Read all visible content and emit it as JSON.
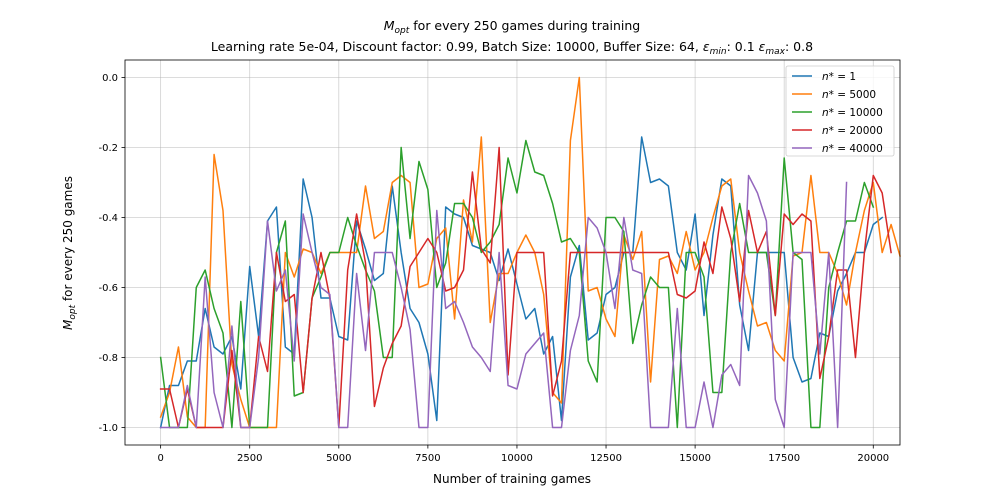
{
  "chart_data": {
    "type": "line",
    "title": "M_opt for every 250 games during training",
    "title_parts": {
      "symbol": "M",
      "sub": "opt",
      "rest": " for every 250 games during training"
    },
    "subtitle": "Learning rate 5e-04, Discount factor: 0.99, Batch Size: 10000, Buffer Size: 64, ε_min: 0.1 ε_max: 0.8",
    "subtitle_parts": {
      "prefix": "Learning rate 5e-04, Discount factor: 0.99, Batch Size: 10000, Buffer Size: 64, ",
      "eps_min_symbol": "ε",
      "eps_min_sub": "min",
      "eps_min_value": ": 0.1 ",
      "eps_max_symbol": "ε",
      "eps_max_sub": "max",
      "eps_max_value": ": 0.8"
    },
    "xlabel": "Number of training games",
    "ylabel": "M_opt for every 250 games",
    "ylabel_parts": {
      "symbol": "M",
      "sub": "opt",
      "rest": " for every 250 games"
    },
    "xlim": [
      -1000,
      20750
    ],
    "ylim": [
      -1.05,
      0.05
    ],
    "xticks": [
      0,
      2500,
      5000,
      7500,
      10000,
      12500,
      15000,
      17500,
      20000
    ],
    "yticks": [
      -1.0,
      -0.8,
      -0.6,
      -0.4,
      -0.2,
      0.0
    ],
    "x_step": 250,
    "grid": true,
    "legend_position": "upper-right",
    "series": [
      {
        "name": "n* = 1",
        "name_parts": {
          "symbol": "n",
          "rest": "* = 1"
        },
        "color": "#1f77b4",
        "values": [
          -1.0,
          -0.88,
          -0.88,
          -0.81,
          -0.81,
          -0.66,
          -0.77,
          -0.79,
          -0.74,
          -0.89,
          -0.54,
          -0.74,
          -0.41,
          -0.37,
          -0.77,
          -0.79,
          -0.29,
          -0.4,
          -0.63,
          -0.63,
          -0.74,
          -0.75,
          -0.41,
          -0.49,
          -0.58,
          -0.56,
          -0.31,
          -0.5,
          -0.66,
          -0.7,
          -0.79,
          -0.98,
          -0.37,
          -0.39,
          -0.4,
          -0.48,
          -0.49,
          -0.5,
          -0.58,
          -0.49,
          -0.59,
          -0.69,
          -0.66,
          -0.79,
          -0.74,
          -0.98,
          -0.57,
          -0.48,
          -0.75,
          -0.73,
          -0.62,
          -0.6,
          -0.5,
          -0.5,
          -0.17,
          -0.3,
          -0.29,
          -0.31,
          -0.5,
          -0.55,
          -0.39,
          -0.68,
          -0.45,
          -0.29,
          -0.31,
          -0.65,
          -0.78,
          -0.5,
          -0.5,
          -0.5,
          -0.5,
          -0.8,
          -0.87,
          -0.86,
          -0.73,
          -0.74,
          -0.61,
          -0.56,
          -0.5,
          -0.5,
          -0.42,
          -0.4
        ]
      },
      {
        "name": "n* = 5000",
        "name_parts": {
          "symbol": "n",
          "rest": "* = 5000"
        },
        "color": "#ff7f0e",
        "values": [
          -0.97,
          -0.9,
          -0.77,
          -0.97,
          -1.0,
          -1.0,
          -0.22,
          -0.38,
          -0.82,
          -0.92,
          -1.0,
          -1.0,
          -1.0,
          -1.0,
          -0.5,
          -0.57,
          -0.49,
          -0.5,
          -0.56,
          -0.5,
          -0.5,
          -0.5,
          -0.5,
          -0.31,
          -0.46,
          -0.44,
          -0.3,
          -0.28,
          -0.3,
          -0.6,
          -0.59,
          -0.46,
          -0.43,
          -0.69,
          -0.35,
          -0.47,
          -0.17,
          -0.7,
          -0.56,
          -0.56,
          -0.5,
          -0.45,
          -0.5,
          -0.62,
          -0.9,
          -0.93,
          -0.18,
          0.0,
          -0.61,
          -0.6,
          -0.69,
          -0.74,
          -0.45,
          -0.52,
          -0.44,
          -0.87,
          -0.52,
          -0.51,
          -0.56,
          -0.44,
          -0.55,
          -0.5,
          -0.4,
          -0.31,
          -0.29,
          -0.5,
          -0.61,
          -0.71,
          -0.7,
          -0.78,
          -0.81,
          -0.51,
          -0.5,
          -0.28,
          -0.5,
          -0.5,
          -0.56,
          -0.65,
          -0.5,
          -0.38,
          -0.3,
          -0.5,
          -0.42,
          -0.51
        ]
      },
      {
        "name": "n* = 10000",
        "name_parts": {
          "symbol": "n",
          "rest": "* = 10000"
        },
        "color": "#2ca02c",
        "values": [
          -0.8,
          -1.0,
          -1.0,
          -1.0,
          -0.6,
          -0.55,
          -0.66,
          -0.73,
          -1.0,
          -0.64,
          -1.0,
          -1.0,
          -1.0,
          -0.5,
          -0.41,
          -0.91,
          -0.9,
          -0.63,
          -0.57,
          -0.5,
          -0.5,
          -0.4,
          -0.48,
          -0.55,
          -0.61,
          -0.8,
          -0.8,
          -0.2,
          -0.46,
          -0.24,
          -0.32,
          -0.6,
          -0.53,
          -0.36,
          -0.36,
          -0.4,
          -0.5,
          -0.47,
          -0.42,
          -0.23,
          -0.33,
          -0.18,
          -0.27,
          -0.28,
          -0.36,
          -0.47,
          -0.46,
          -0.5,
          -0.81,
          -0.87,
          -0.4,
          -0.4,
          -0.44,
          -0.76,
          -0.65,
          -0.57,
          -0.6,
          -0.6,
          -1.0,
          -0.5,
          -0.5,
          -0.57,
          -0.9,
          -0.9,
          -0.5,
          -0.36,
          -0.5,
          -0.5,
          -0.5,
          -0.68,
          -0.23,
          -0.5,
          -0.52,
          -1.0,
          -1.0,
          -0.6,
          -0.5,
          -0.41,
          -0.41,
          -0.3,
          -0.37
        ]
      },
      {
        "name": "n* = 20000",
        "name_parts": {
          "symbol": "n",
          "rest": "* = 20000"
        },
        "color": "#d62728",
        "values": [
          -0.89,
          -0.89,
          -1.0,
          -0.89,
          -1.0,
          -1.0,
          -1.0,
          -1.0,
          -0.78,
          -1.0,
          -1.0,
          -0.74,
          -0.84,
          -0.5,
          -0.64,
          -0.62,
          -0.9,
          -0.63,
          -0.5,
          -0.63,
          -1.0,
          -0.55,
          -0.39,
          -0.53,
          -0.94,
          -0.83,
          -0.76,
          -0.71,
          -0.54,
          -0.5,
          -0.46,
          -0.5,
          -0.61,
          -0.6,
          -0.55,
          -0.27,
          -0.49,
          -0.53,
          -0.2,
          -0.85,
          -0.5,
          -0.5,
          -0.5,
          -0.5,
          -0.91,
          -0.81,
          -0.5,
          -0.5,
          -0.5,
          -0.5,
          -0.5,
          -0.5,
          -0.5,
          -0.5,
          -0.5,
          -0.5,
          -0.5,
          -0.5,
          -0.62,
          -0.63,
          -0.61,
          -0.47,
          -0.56,
          -0.37,
          -0.46,
          -0.64,
          -0.38,
          -0.5,
          -0.44,
          -0.68,
          -0.39,
          -0.42,
          -0.39,
          -0.41,
          -0.86,
          -0.74,
          -0.55,
          -0.55,
          -0.8,
          -0.5,
          -0.28,
          -0.33,
          -0.5
        ]
      },
      {
        "name": "n* = 40000",
        "name_parts": {
          "symbol": "n",
          "rest": "* = 40000"
        },
        "color": "#9467bd",
        "values": [
          -1.0,
          -1.0,
          -1.0,
          -0.88,
          -1.0,
          -0.57,
          -0.9,
          -1.0,
          -0.71,
          -1.0,
          -1.0,
          -0.8,
          -0.41,
          -0.61,
          -0.55,
          -0.81,
          -0.39,
          -0.5,
          -0.6,
          -0.62,
          -1.0,
          -1.0,
          -0.56,
          -0.78,
          -0.5,
          -0.5,
          -0.5,
          -0.6,
          -0.72,
          -1.0,
          -1.0,
          -0.38,
          -0.66,
          -0.64,
          -0.7,
          -0.77,
          -0.8,
          -0.84,
          -0.5,
          -0.88,
          -0.89,
          -0.79,
          -0.76,
          -0.73,
          -1.0,
          -1.0,
          -0.78,
          -0.68,
          -0.4,
          -0.43,
          -0.5,
          -0.66,
          -0.4,
          -0.55,
          -0.56,
          -1.0,
          -1.0,
          -1.0,
          -0.66,
          -1.0,
          -1.0,
          -0.87,
          -1.0,
          -0.85,
          -0.82,
          -0.88,
          -0.28,
          -0.33,
          -0.41,
          -0.92,
          -1.0,
          -0.5,
          -0.5,
          -0.5,
          -0.79,
          -0.5,
          -1.0,
          -0.3
        ]
      }
    ]
  }
}
